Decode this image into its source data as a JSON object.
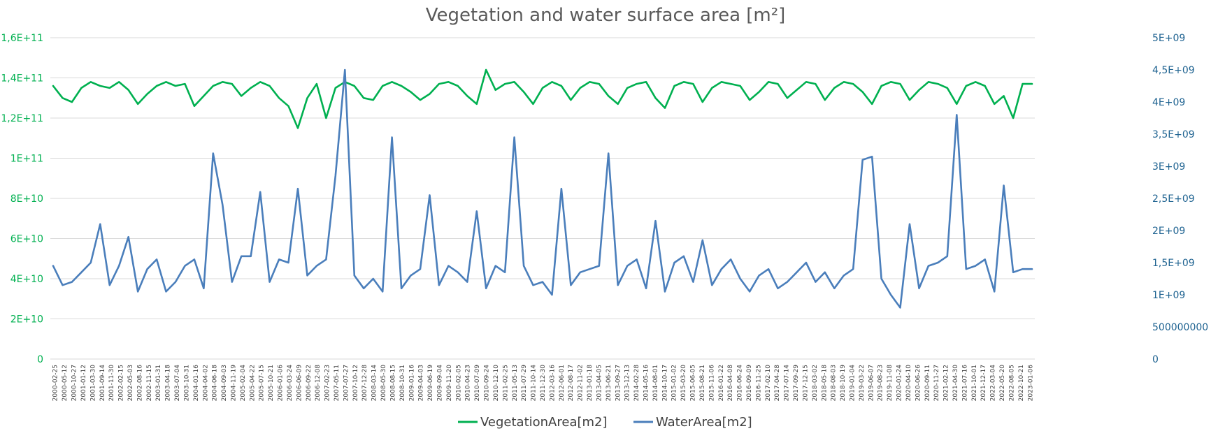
{
  "chart_data": {
    "type": "line",
    "title": "Vegetation and water surface area [m²]",
    "xlabel": "",
    "ylabel": "",
    "y_left": {
      "ticks": [
        "0",
        "2E+10",
        "4E+10",
        "6E+10",
        "8E+10",
        "1E+11",
        "1,2E+11",
        "1,4E+11",
        "1,6E+11"
      ],
      "min": 0,
      "max": 160000000000
    },
    "y_right": {
      "ticks": [
        "0",
        "500000000",
        "1E+09",
        "1,5E+09",
        "2E+09",
        "2,5E+09",
        "3E+09",
        "3,5E+09",
        "4E+09",
        "4,5E+09",
        "5E+09"
      ],
      "min": 0,
      "max": 5000000000
    },
    "x_ticks": [
      "2000-02-25",
      "2000-05-12",
      "2000-10-27",
      "2001-01-12",
      "2001-03-30",
      "2001-09-14",
      "2001-11-30",
      "2002-02-15",
      "2002-05-03",
      "2002-08-16",
      "2002-11-15",
      "2003-01-31",
      "2003-04-18",
      "2003-07-04",
      "2003-10-31",
      "2004-01-16",
      "2004-04-02",
      "2004-06-18",
      "2004-09-03",
      "2004-11-19",
      "2005-02-04",
      "2005-04-22",
      "2005-07-15",
      "2005-10-21",
      "2006-01-06",
      "2006-03-24",
      "2006-06-09",
      "2006-09-22",
      "2006-12-08",
      "2007-02-23",
      "2007-05-11",
      "2007-07-27",
      "2007-10-12",
      "2007-12-28",
      "2008-03-14",
      "2008-05-30",
      "2008-08-15",
      "2008-10-31",
      "2009-01-16",
      "2009-04-03",
      "2009-06-19",
      "2009-09-04",
      "2009-11-20",
      "2010-02-05",
      "2010-04-23",
      "2010-07-09",
      "2010-09-24",
      "2010-12-10",
      "2011-02-25",
      "2011-05-13",
      "2011-07-29",
      "2011-10-14",
      "2011-12-30",
      "2012-03-16",
      "2012-06-01",
      "2012-08-17",
      "2012-11-02",
      "2013-01-18",
      "2013-04-05",
      "2013-06-21",
      "2013-09-27",
      "2013-12-13",
      "2014-02-28",
      "2014-05-16",
      "2014-08-01",
      "2014-10-17",
      "2015-01-02",
      "2015-03-20",
      "2015-06-05",
      "2015-08-21",
      "2015-11-06",
      "2016-01-22",
      "2016-04-08",
      "2016-06-24",
      "2016-09-09",
      "2016-11-25",
      "2017-02-10",
      "2017-04-28",
      "2017-07-14",
      "2017-09-29",
      "2017-12-15",
      "2018-03-02",
      "2018-05-18",
      "2018-08-03",
      "2018-10-19",
      "2019-01-04",
      "2019-03-22",
      "2019-06-07",
      "2019-08-23",
      "2019-11-08",
      "2020-01-24",
      "2020-04-10",
      "2020-06-26",
      "2020-09-11",
      "2020-11-27",
      "2021-02-12",
      "2021-04-30",
      "2021-07-16",
      "2021-10-01",
      "2021-12-17",
      "2022-03-04",
      "2022-05-20",
      "2022-08-05",
      "2022-10-21",
      "2023-01-06"
    ],
    "series": [
      {
        "name": "VegetationArea[m2]",
        "axis": "left",
        "color": "#00b050",
        "values": [
          136000000000.0,
          130000000000.0,
          128000000000.0,
          135000000000.0,
          138000000000.0,
          136000000000.0,
          135000000000.0,
          138000000000.0,
          134000000000.0,
          127000000000.0,
          132000000000.0,
          136000000000.0,
          138000000000.0,
          136000000000.0,
          137000000000.0,
          126000000000.0,
          131000000000.0,
          136000000000.0,
          138000000000.0,
          137000000000.0,
          131000000000.0,
          135000000000.0,
          138000000000.0,
          136000000000.0,
          130000000000.0,
          126000000000.0,
          115000000000.0,
          130000000000.0,
          137000000000.0,
          120000000000.0,
          135000000000.0,
          138000000000.0,
          136000000000.0,
          130000000000.0,
          129000000000.0,
          136000000000.0,
          138000000000.0,
          136000000000.0,
          133000000000.0,
          129000000000.0,
          132000000000.0,
          137000000000.0,
          138000000000.0,
          136000000000.0,
          131000000000.0,
          127000000000.0,
          144000000000.0,
          134000000000.0,
          137000000000.0,
          138000000000.0,
          133000000000.0,
          127000000000.0,
          135000000000.0,
          138000000000.0,
          136000000000.0,
          129000000000.0,
          135000000000.0,
          138000000000.0,
          137000000000.0,
          131000000000.0,
          127000000000.0,
          135000000000.0,
          137000000000.0,
          138000000000.0,
          130000000000.0,
          125000000000.0,
          136000000000.0,
          138000000000.0,
          137000000000.0,
          128000000000.0,
          135000000000.0,
          138000000000.0,
          137000000000.0,
          136000000000.0,
          129000000000.0,
          133000000000.0,
          138000000000.0,
          137000000000.0,
          130000000000.0,
          134000000000.0,
          138000000000.0,
          137000000000.0,
          129000000000.0,
          135000000000.0,
          138000000000.0,
          137000000000.0,
          133000000000.0,
          127000000000.0,
          136000000000.0,
          138000000000.0,
          137000000000.0,
          129000000000.0,
          134000000000.0,
          138000000000.0,
          137000000000.0,
          135000000000.0,
          127000000000.0,
          136000000000.0,
          138000000000.0,
          136000000000.0,
          127000000000.0,
          131000000000.0,
          120000000000.0,
          137000000000.0,
          137000000000.0
        ]
      },
      {
        "name": "WaterArea[m2]",
        "axis": "right",
        "color": "#4a7ebb",
        "values": [
          1450000000.0,
          1150000000.0,
          1200000000.0,
          1350000000.0,
          1500000000.0,
          2100000000.0,
          1150000000.0,
          1450000000.0,
          1900000000.0,
          1050000000.0,
          1400000000.0,
          1550000000.0,
          1050000000.0,
          1200000000.0,
          1450000000.0,
          1550000000.0,
          1100000000.0,
          3200000000.0,
          2400000000.0,
          1200000000.0,
          1600000000.0,
          1600000000.0,
          2600000000.0,
          1200000000.0,
          1550000000.0,
          1500000000.0,
          2650000000.0,
          1300000000.0,
          1450000000.0,
          1550000000.0,
          2850000000.0,
          4500000000.0,
          1300000000.0,
          1100000000.0,
          1250000000.0,
          1050000000.0,
          3450000000.0,
          1100000000.0,
          1300000000.0,
          1400000000.0,
          2550000000.0,
          1150000000.0,
          1450000000.0,
          1350000000.0,
          1200000000.0,
          2300000000.0,
          1100000000.0,
          1450000000.0,
          1350000000.0,
          3450000000.0,
          1450000000.0,
          1150000000.0,
          1200000000.0,
          1000000000.0,
          2650000000.0,
          1150000000.0,
          1350000000.0,
          1400000000.0,
          1450000000.0,
          3200000000.0,
          1150000000.0,
          1450000000.0,
          1550000000.0,
          1100000000.0,
          2150000000.0,
          1050000000.0,
          1500000000.0,
          1600000000.0,
          1200000000.0,
          1850000000.0,
          1150000000.0,
          1400000000.0,
          1550000000.0,
          1250000000.0,
          1050000000.0,
          1300000000.0,
          1400000000.0,
          1100000000.0,
          1200000000.0,
          1350000000.0,
          1500000000.0,
          1200000000.0,
          1350000000.0,
          1100000000.0,
          1300000000.0,
          1400000000.0,
          3100000000.0,
          3150000000.0,
          1250000000.0,
          1000000000.0,
          800000000.0,
          2100000000.0,
          1100000000.0,
          1450000000.0,
          1500000000.0,
          1600000000.0,
          3800000000.0,
          1400000000.0,
          1450000000.0,
          1550000000.0,
          1050000000.0,
          2700000000.0,
          1350000000.0,
          1400000000.0,
          1400000000.0
        ]
      }
    ],
    "grid": true,
    "legend": "bottom"
  }
}
